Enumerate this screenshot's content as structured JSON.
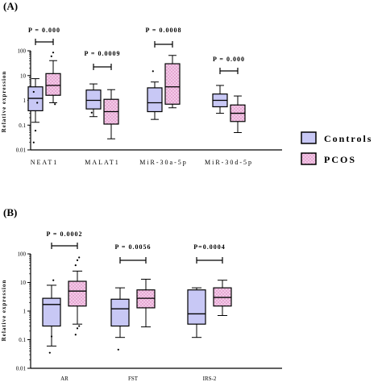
{
  "colors": {
    "controls": "#c8c8f5",
    "pcos": "#f4c8e8",
    "pcos_dot": "#c0609a",
    "stroke": "#000000"
  },
  "legend": {
    "controls": "Controls",
    "pcos": "PCOS"
  },
  "chart_data": [
    {
      "type": "box",
      "panel_label": "(A)",
      "ylabel": "Relative expression",
      "yscale": "log",
      "ylim": [
        0.01,
        100
      ],
      "yticks": [
        "0.01",
        "0.1",
        "1",
        "10",
        "100"
      ],
      "legend_position": "right",
      "categories": [
        "NEAT1",
        "MALAT1",
        "MiR-30a-5p",
        "MiR-30d-5p"
      ],
      "p_values": [
        "P = 0.000",
        "P = 0.0009",
        "P = 0.0008",
        "P = 0.000"
      ],
      "series": [
        {
          "name": "Controls",
          "boxes": [
            {
              "min": 0.13,
              "q1": 0.38,
              "median": 1.2,
              "q3": 3.5,
              "max": 7.5,
              "outliers": [
                0.02,
                0.06,
                0.8,
                2.2
              ]
            },
            {
              "min": 0.22,
              "q1": 0.45,
              "median": 1.0,
              "q3": 2.6,
              "max": 4.6,
              "outliers": [
                0.32
              ]
            },
            {
              "min": 0.17,
              "q1": 0.35,
              "median": 0.8,
              "q3": 3.2,
              "max": 5.5,
              "outliers": [
                15
              ]
            },
            {
              "min": 0.3,
              "q1": 0.55,
              "median": 1.0,
              "q3": 1.8,
              "max": 4.0,
              "outliers": []
            }
          ]
        },
        {
          "name": "PCOS",
          "boxes": [
            {
              "min": 0.8,
              "q1": 1.6,
              "median": 4.0,
              "q3": 12,
              "max": 40,
              "outliers": [
                60,
                85,
                0.7
              ]
            },
            {
              "min": 0.028,
              "q1": 0.11,
              "median": 0.35,
              "q3": 1.1,
              "max": 2.7,
              "outliers": []
            },
            {
              "min": 0.5,
              "q1": 0.7,
              "median": 3.5,
              "q3": 30,
              "max": 65,
              "outliers": []
            },
            {
              "min": 0.05,
              "q1": 0.14,
              "median": 0.3,
              "q3": 0.65,
              "max": 1.5,
              "outliers": []
            }
          ]
        }
      ]
    },
    {
      "type": "box",
      "panel_label": "(B)",
      "ylabel": "Relative expression",
      "yscale": "log",
      "ylim": [
        0.01,
        100
      ],
      "yticks": [
        "0.01",
        "0.1",
        "1",
        "10",
        "100"
      ],
      "categories": [
        "AR",
        "FST",
        "IRS-2"
      ],
      "p_values": [
        "P = 0.0002",
        "P = 0.0056",
        "P=0.0004"
      ],
      "series": [
        {
          "name": "Controls",
          "boxes": [
            {
              "min": 0.06,
              "q1": 0.3,
              "median": 1.7,
              "q3": 2.8,
              "max": 8,
              "outliers": [
                0.035,
                0.13,
                12
              ]
            },
            {
              "min": 0.12,
              "q1": 0.3,
              "median": 1.2,
              "q3": 2.6,
              "max": 6.5,
              "outliers": [
                0.045
              ]
            },
            {
              "min": 0.12,
              "q1": 0.35,
              "median": 0.8,
              "q3": 5.5,
              "max": 6.5,
              "outliers": []
            }
          ]
        },
        {
          "name": "PCOS",
          "boxes": [
            {
              "min": 0.35,
              "q1": 1.5,
              "median": 5.0,
              "q3": 11,
              "max": 25,
              "outliers": [
                0.15,
                0.25,
                0.3,
                40,
                60,
                75
              ]
            },
            {
              "min": 0.28,
              "q1": 1.3,
              "median": 2.8,
              "q3": 5.5,
              "max": 13,
              "outliers": []
            },
            {
              "min": 0.7,
              "q1": 1.5,
              "median": 3.0,
              "q3": 6.5,
              "max": 12,
              "outliers": []
            }
          ]
        }
      ]
    }
  ]
}
